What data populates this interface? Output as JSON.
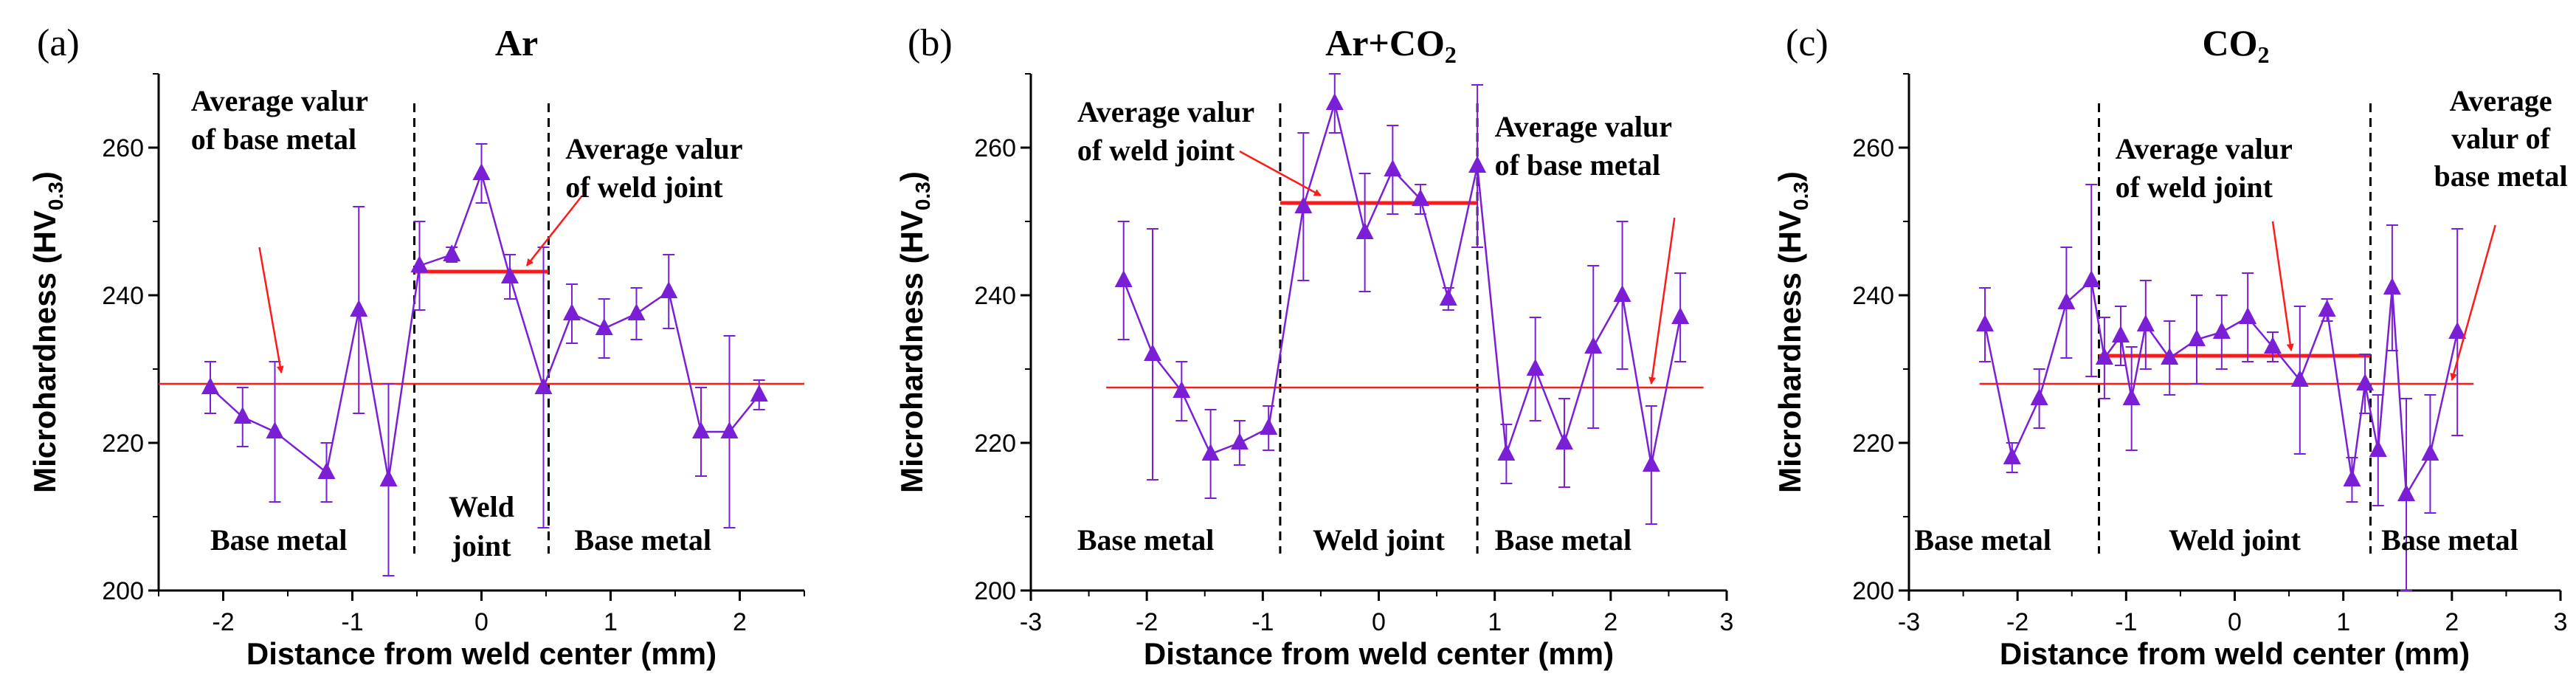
{
  "figure": {
    "colors": {
      "data": "#7b1fd6",
      "average": "#ff1a1a",
      "axis": "#000000",
      "boundary": "#000000"
    }
  },
  "chart_data": [
    {
      "type": "line",
      "panel_label": "(a)",
      "title_parts": [
        {
          "t": "Ar"
        }
      ],
      "xlabel": "Distance from weld center (mm)",
      "ylabel_main": "Microhardness (HV",
      "ylabel_sub": "0.3",
      "ylabel_close": ")",
      "xlim": [
        -2.5,
        2.5
      ],
      "ylim": [
        200,
        270
      ],
      "xticks": [
        -2,
        -1,
        0,
        1,
        2
      ],
      "yticks": [
        200,
        220,
        240,
        260
      ],
      "series": [
        {
          "name": "Ar",
          "x": [
            -2.1,
            -1.85,
            -1.6,
            -1.2,
            -0.95,
            -0.72,
            -0.48,
            -0.23,
            0.0,
            0.22,
            0.48,
            0.7,
            0.95,
            1.2,
            1.45,
            1.7,
            1.92,
            2.15
          ],
          "y": [
            227.5,
            223.5,
            221.5,
            216.0,
            238.0,
            215.0,
            244.0,
            245.5,
            256.5,
            242.5,
            227.5,
            237.5,
            235.5,
            237.5,
            240.5,
            221.5,
            221.5,
            226.5
          ],
          "err": [
            3.5,
            4.0,
            9.5,
            4.0,
            14.0,
            13.0,
            6.0,
            1.0,
            4.0,
            3.0,
            19.0,
            4.0,
            4.0,
            3.5,
            5.0,
            6.0,
            13.0,
            2.0
          ]
        }
      ],
      "boundaries": [
        -0.52,
        0.52
      ],
      "averages": [
        {
          "y": 228.0,
          "x0": -2.5,
          "x1": 2.5
        },
        {
          "y": 243.2,
          "x0": -0.52,
          "x1": 0.52
        }
      ],
      "annotations": [
        {
          "lines": [
            "Average valur",
            "of base metal"
          ],
          "anchor": "start",
          "x": -2.25,
          "y": 265.0,
          "dy": 5.2
        },
        {
          "lines": [
            "Average valur",
            "of weld joint"
          ],
          "anchor": "start",
          "x": 0.65,
          "y": 258.5,
          "dy": 5.2
        },
        {
          "lines": [
            "Base metal"
          ],
          "anchor": "start",
          "x": -2.1,
          "y": 205.5,
          "dy": 0
        },
        {
          "lines": [
            "Weld",
            "joint"
          ],
          "anchor": "middle",
          "x": 0.0,
          "y": 210.0,
          "dy": 5.3
        },
        {
          "lines": [
            "Base metal"
          ],
          "anchor": "start",
          "x": 0.72,
          "y": 205.5,
          "dy": 0
        }
      ],
      "arrows": [
        {
          "from": [
            -1.72,
            246.5
          ],
          "to": [
            -1.55,
            229.5
          ]
        },
        {
          "from": [
            0.78,
            253.5
          ],
          "to": [
            0.35,
            244.0
          ]
        }
      ]
    },
    {
      "type": "line",
      "panel_label": "(b)",
      "title_parts": [
        {
          "t": "Ar+CO"
        },
        {
          "t": "2",
          "sub": true
        }
      ],
      "xlabel": "Distance from weld center (mm)",
      "ylabel_main": "Microhardness (HV",
      "ylabel_sub": "0.3",
      "ylabel_close": ")",
      "xlim": [
        -3,
        3
      ],
      "ylim": [
        200,
        270
      ],
      "xticks": [
        -3,
        -2,
        -1,
        0,
        1,
        2,
        3
      ],
      "yticks": [
        200,
        220,
        240,
        260
      ],
      "series": [
        {
          "name": "Ar+CO2",
          "x": [
            -2.2,
            -1.95,
            -1.7,
            -1.45,
            -1.2,
            -0.95,
            -0.65,
            -0.38,
            -0.12,
            0.12,
            0.36,
            0.6,
            0.85,
            1.1,
            1.35,
            1.6,
            1.85,
            2.1,
            2.35,
            2.6
          ],
          "y": [
            242.0,
            232.0,
            227.0,
            218.5,
            220.0,
            222.0,
            252.0,
            266.0,
            248.5,
            257.0,
            253.0,
            239.5,
            257.5,
            218.5,
            230.0,
            220.0,
            233.0,
            240.0,
            217.0,
            237.0
          ],
          "err": [
            8.0,
            17.0,
            4.0,
            6.0,
            3.0,
            3.0,
            10.0,
            4.0,
            8.0,
            6.0,
            2.0,
            1.5,
            11.0,
            4.0,
            7.0,
            6.0,
            11.0,
            10.0,
            8.0,
            6.0
          ]
        }
      ],
      "boundaries": [
        -0.85,
        0.85
      ],
      "averages": [
        {
          "y": 227.5,
          "x0": -2.35,
          "x1": 2.8
        },
        {
          "y": 252.5,
          "x0": -0.85,
          "x1": 0.85
        }
      ],
      "annotations": [
        {
          "lines": [
            "Average valur",
            "of weld joint"
          ],
          "anchor": "start",
          "x": -2.6,
          "y": 263.5,
          "dy": 5.2
        },
        {
          "lines": [
            "Average valur",
            "of base metal"
          ],
          "anchor": "start",
          "x": 1.0,
          "y": 261.5,
          "dy": 5.2
        },
        {
          "lines": [
            "Base metal"
          ],
          "anchor": "start",
          "x": -2.6,
          "y": 205.5,
          "dy": 0
        },
        {
          "lines": [
            "Weld joint"
          ],
          "anchor": "middle",
          "x": 0.0,
          "y": 205.5,
          "dy": 0
        },
        {
          "lines": [
            "Base metal"
          ],
          "anchor": "start",
          "x": 1.0,
          "y": 205.5,
          "dy": 0
        }
      ],
      "arrows": [
        {
          "from": [
            -1.2,
            259.5
          ],
          "to": [
            -0.5,
            253.5
          ]
        },
        {
          "from": [
            2.55,
            250.5
          ],
          "to": [
            2.35,
            228.0
          ]
        }
      ]
    },
    {
      "type": "line",
      "panel_label": "(c)",
      "title_parts": [
        {
          "t": "CO"
        },
        {
          "t": "2",
          "sub": true
        }
      ],
      "xlabel": "Distance from weld center (mm)",
      "ylabel_main": "Microhardness (HV",
      "ylabel_sub": "0.3",
      "ylabel_close": ")",
      "xlim": [
        -3,
        3
      ],
      "ylim": [
        200,
        270
      ],
      "xticks": [
        -3,
        -2,
        -1,
        0,
        1,
        2,
        3
      ],
      "yticks": [
        200,
        220,
        240,
        260
      ],
      "series": [
        {
          "name": "CO2",
          "x": [
            -2.3,
            -2.05,
            -1.8,
            -1.55,
            -1.32,
            -1.2,
            -1.05,
            -0.95,
            -0.82,
            -0.6,
            -0.35,
            -0.12,
            0.12,
            0.35,
            0.6,
            0.85,
            1.08,
            1.2,
            1.32,
            1.45,
            1.58,
            1.8,
            2.05
          ],
          "y": [
            236.0,
            218.0,
            226.0,
            239.0,
            242.0,
            231.5,
            234.5,
            226.0,
            236.0,
            231.5,
            234.0,
            235.0,
            237.0,
            233.0,
            228.5,
            238.0,
            215.0,
            228.0,
            219.0,
            241.0,
            213.0,
            218.5,
            235.0
          ],
          "err": [
            5.0,
            2.0,
            4.0,
            7.5,
            13.0,
            5.5,
            4.0,
            7.0,
            6.0,
            5.0,
            6.0,
            5.0,
            6.0,
            2.0,
            10.0,
            1.5,
            3.0,
            4.0,
            7.5,
            8.5,
            13.0,
            8.0,
            14.0
          ]
        }
      ],
      "boundaries": [
        -1.25,
        1.25
      ],
      "averages": [
        {
          "y": 228.0,
          "x0": -2.35,
          "x1": 2.2
        },
        {
          "y": 231.8,
          "x0": -1.25,
          "x1": 1.25
        }
      ],
      "annotations": [
        {
          "lines": [
            "Average valur",
            "of weld joint"
          ],
          "anchor": "start",
          "x": -1.1,
          "y": 258.5,
          "dy": 5.2
        },
        {
          "lines": [
            "Average",
            "valur of",
            "base metal"
          ],
          "anchor": "middle",
          "x": 2.45,
          "y": 265.0,
          "dy": 5.1
        },
        {
          "lines": [
            "Base metal"
          ],
          "anchor": "start",
          "x": -2.95,
          "y": 205.5,
          "dy": 0
        },
        {
          "lines": [
            "Weld joint"
          ],
          "anchor": "middle",
          "x": 0.0,
          "y": 205.5,
          "dy": 0
        },
        {
          "lines": [
            "Base metal"
          ],
          "anchor": "start",
          "x": 1.35,
          "y": 205.5,
          "dy": 0
        }
      ],
      "arrows": [
        {
          "from": [
            0.35,
            250.0
          ],
          "to": [
            0.52,
            232.5
          ]
        },
        {
          "from": [
            2.4,
            249.5
          ],
          "to": [
            2.0,
            228.5
          ]
        }
      ]
    }
  ]
}
